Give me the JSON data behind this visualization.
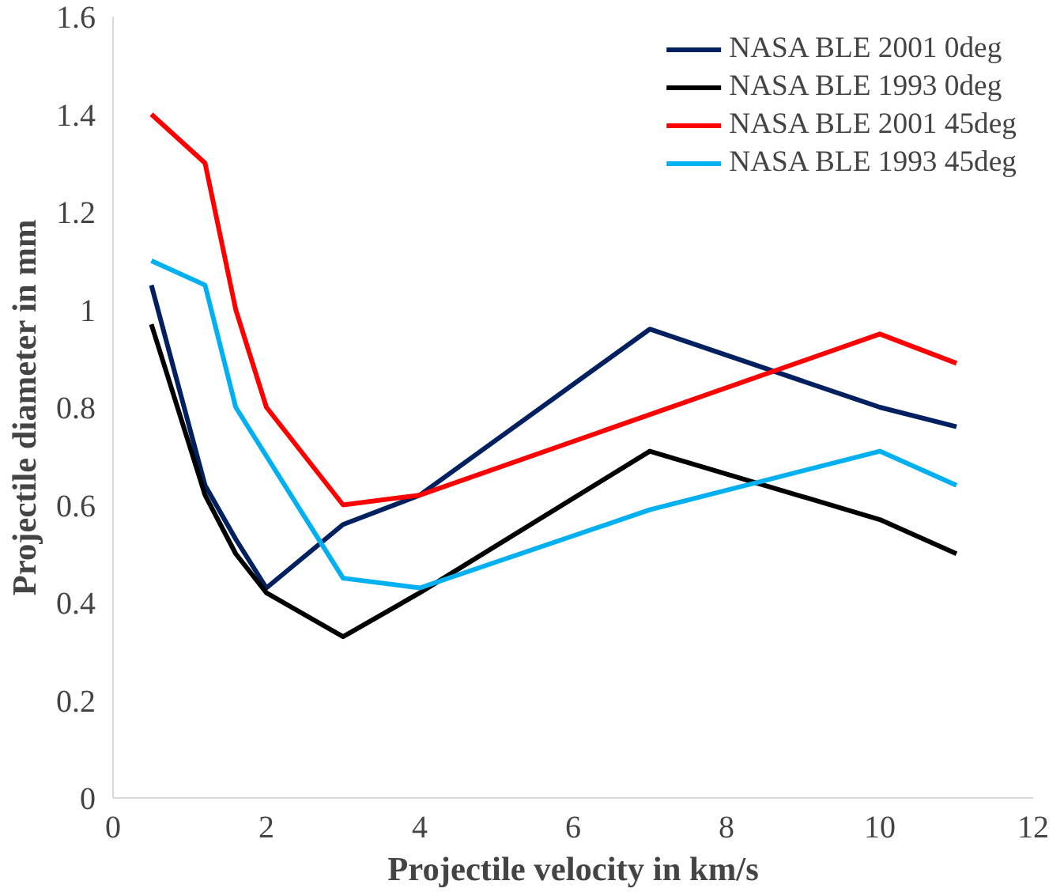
{
  "chart_data": {
    "type": "line",
    "xlabel": "Projectile velocity in km/s",
    "ylabel": "Projectile diameter in mm",
    "xlim": [
      0,
      12
    ],
    "ylim": [
      0,
      1.6
    ],
    "xticks": [
      0,
      2,
      4,
      6,
      8,
      10,
      12
    ],
    "yticks": [
      0,
      0.2,
      0.4,
      0.6,
      0.8,
      1,
      1.2,
      1.4,
      1.6
    ],
    "grid": false,
    "legend": "top right",
    "marker": "none",
    "line_style": "solid",
    "series": [
      {
        "name": "NASA BLE 2001 0deg",
        "color": "#002060",
        "x": [
          0.5,
          1.2,
          1.6,
          2,
          3,
          4,
          7,
          10,
          11
        ],
        "values": [
          1.05,
          0.64,
          0.53,
          0.43,
          0.56,
          0.62,
          0.96,
          0.8,
          0.76
        ]
      },
      {
        "name": "NASA BLE 1993 0deg",
        "color": "#000000",
        "x": [
          0.5,
          1.2,
          1.6,
          2,
          3,
          4,
          7,
          10,
          11
        ],
        "values": [
          0.97,
          0.62,
          0.5,
          0.42,
          0.33,
          0.42,
          0.71,
          0.57,
          0.5
        ]
      },
      {
        "name": "NASA BLE 2001 45deg",
        "color": "#ff0000",
        "x": [
          0.5,
          1.2,
          1.6,
          2,
          3,
          4,
          10,
          11
        ],
        "values": [
          1.4,
          1.3,
          1.0,
          0.8,
          0.6,
          0.62,
          0.95,
          0.89
        ]
      },
      {
        "name": "NASA BLE 1993 45deg",
        "color": "#00b0f0",
        "x": [
          0.5,
          1.2,
          1.6,
          3,
          4,
          7,
          10,
          11
        ],
        "values": [
          1.1,
          1.05,
          0.8,
          0.45,
          0.43,
          0.59,
          0.71,
          0.64
        ]
      }
    ]
  }
}
